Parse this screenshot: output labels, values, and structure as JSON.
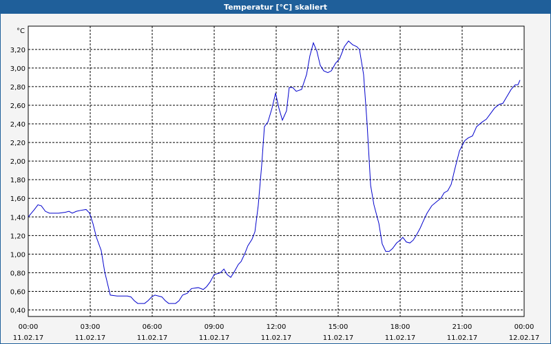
{
  "chart_data": {
    "type": "line",
    "title": "Temperatur [°C] skaliert",
    "y_unit": "°C",
    "x": [
      0,
      0.3,
      0.47,
      0.63,
      0.83,
      1.03,
      1.47,
      1.8,
      1.97,
      2.13,
      2.33,
      2.53,
      2.8,
      2.97,
      3.13,
      3.3,
      3.53,
      3.7,
      3.97,
      4.3,
      4.47,
      4.8,
      4.97,
      5.13,
      5.3,
      5.63,
      5.8,
      5.97,
      6.13,
      6.47,
      6.63,
      6.8,
      7.13,
      7.3,
      7.47,
      7.7,
      7.9,
      8.23,
      8.47,
      8.63,
      8.8,
      9,
      9.3,
      9.47,
      9.63,
      9.8,
      9.97,
      10.17,
      10.3,
      10.47,
      10.63,
      10.83,
      10.97,
      11.13,
      11.3,
      11.43,
      11.6,
      11.8,
      11.97,
      12.13,
      12.3,
      12.5,
      12.63,
      12.8,
      12.97,
      13.23,
      13.47,
      13.63,
      13.8,
      13.97,
      14.13,
      14.3,
      14.5,
      14.67,
      14.87,
      15.07,
      15.3,
      15.5,
      15.7,
      15.9,
      16.03,
      16.23,
      16.4,
      16.57,
      16.73,
      16.97,
      17.13,
      17.3,
      17.47,
      17.63,
      17.83,
      18,
      18.13,
      18.3,
      18.47,
      18.63,
      18.8,
      18.97,
      19.13,
      19.3,
      19.53,
      19.8,
      19.97,
      20.13,
      20.3,
      20.47,
      20.63,
      20.87,
      21.13,
      21.3,
      21.5,
      21.7,
      21.97,
      22.17,
      22.37,
      22.57,
      22.8,
      22.97,
      23.13,
      23.37,
      23.57,
      23.7,
      23.8
    ],
    "series": [
      {
        "color": "#0000cc",
        "values": [
          1.4,
          1.48,
          1.53,
          1.52,
          1.46,
          1.44,
          1.44,
          1.45,
          1.46,
          1.44,
          1.46,
          1.47,
          1.48,
          1.44,
          1.33,
          1.18,
          1.04,
          0.81,
          0.56,
          0.55,
          0.55,
          0.55,
          0.54,
          0.5,
          0.47,
          0.47,
          0.5,
          0.54,
          0.56,
          0.54,
          0.5,
          0.47,
          0.47,
          0.5,
          0.56,
          0.58,
          0.63,
          0.64,
          0.62,
          0.65,
          0.7,
          0.78,
          0.8,
          0.84,
          0.78,
          0.75,
          0.81,
          0.89,
          0.92,
          1.0,
          1.09,
          1.16,
          1.24,
          1.52,
          1.96,
          2.37,
          2.42,
          2.57,
          2.73,
          2.57,
          2.44,
          2.54,
          2.79,
          2.79,
          2.75,
          2.77,
          2.93,
          3.13,
          3.27,
          3.18,
          3.03,
          2.97,
          2.95,
          2.97,
          3.05,
          3.1,
          3.23,
          3.29,
          3.25,
          3.23,
          3.2,
          2.93,
          2.4,
          1.74,
          1.53,
          1.33,
          1.11,
          1.03,
          1.03,
          1.06,
          1.12,
          1.15,
          1.18,
          1.13,
          1.12,
          1.15,
          1.21,
          1.28,
          1.36,
          1.44,
          1.52,
          1.57,
          1.6,
          1.66,
          1.68,
          1.75,
          1.9,
          2.11,
          2.22,
          2.25,
          2.27,
          2.37,
          2.42,
          2.45,
          2.51,
          2.57,
          2.61,
          2.62,
          2.68,
          2.77,
          2.82,
          2.82,
          2.87
        ]
      }
    ],
    "xlim": [
      0,
      24
    ],
    "xticks": [
      {
        "value": 0,
        "label": "00:00"
      },
      {
        "value": 3,
        "label": "03:00"
      },
      {
        "value": 6,
        "label": "06:00"
      },
      {
        "value": 9,
        "label": "09:00"
      },
      {
        "value": 12,
        "label": "12:00"
      },
      {
        "value": 15,
        "label": "15:00"
      },
      {
        "value": 18,
        "label": "18:00"
      },
      {
        "value": 21,
        "label": "21:00"
      },
      {
        "value": 24,
        "label": "00:00"
      }
    ],
    "xtick_dates": [
      "11.02.17",
      "11.02.17",
      "11.02.17",
      "11.02.17",
      "11.02.17",
      "11.02.17",
      "11.02.17",
      "11.02.17",
      "12.02.17"
    ],
    "ylim": [
      0.33,
      3.45
    ],
    "yticks": [
      {
        "value": 0.4,
        "label": "0,40"
      },
      {
        "value": 0.6,
        "label": "0,60"
      },
      {
        "value": 0.8,
        "label": "0,80"
      },
      {
        "value": 1.0,
        "label": "1,00"
      },
      {
        "value": 1.2,
        "label": "1,20"
      },
      {
        "value": 1.4,
        "label": "1,40"
      },
      {
        "value": 1.6,
        "label": "1,60"
      },
      {
        "value": 1.8,
        "label": "1,80"
      },
      {
        "value": 2.0,
        "label": "2,00"
      },
      {
        "value": 2.2,
        "label": "2,20"
      },
      {
        "value": 2.4,
        "label": "2,40"
      },
      {
        "value": 2.6,
        "label": "2,60"
      },
      {
        "value": 2.8,
        "label": "2,80"
      },
      {
        "value": 3.0,
        "label": "3,00"
      },
      {
        "value": 3.2,
        "label": "3,20"
      }
    ],
    "grid": true
  }
}
